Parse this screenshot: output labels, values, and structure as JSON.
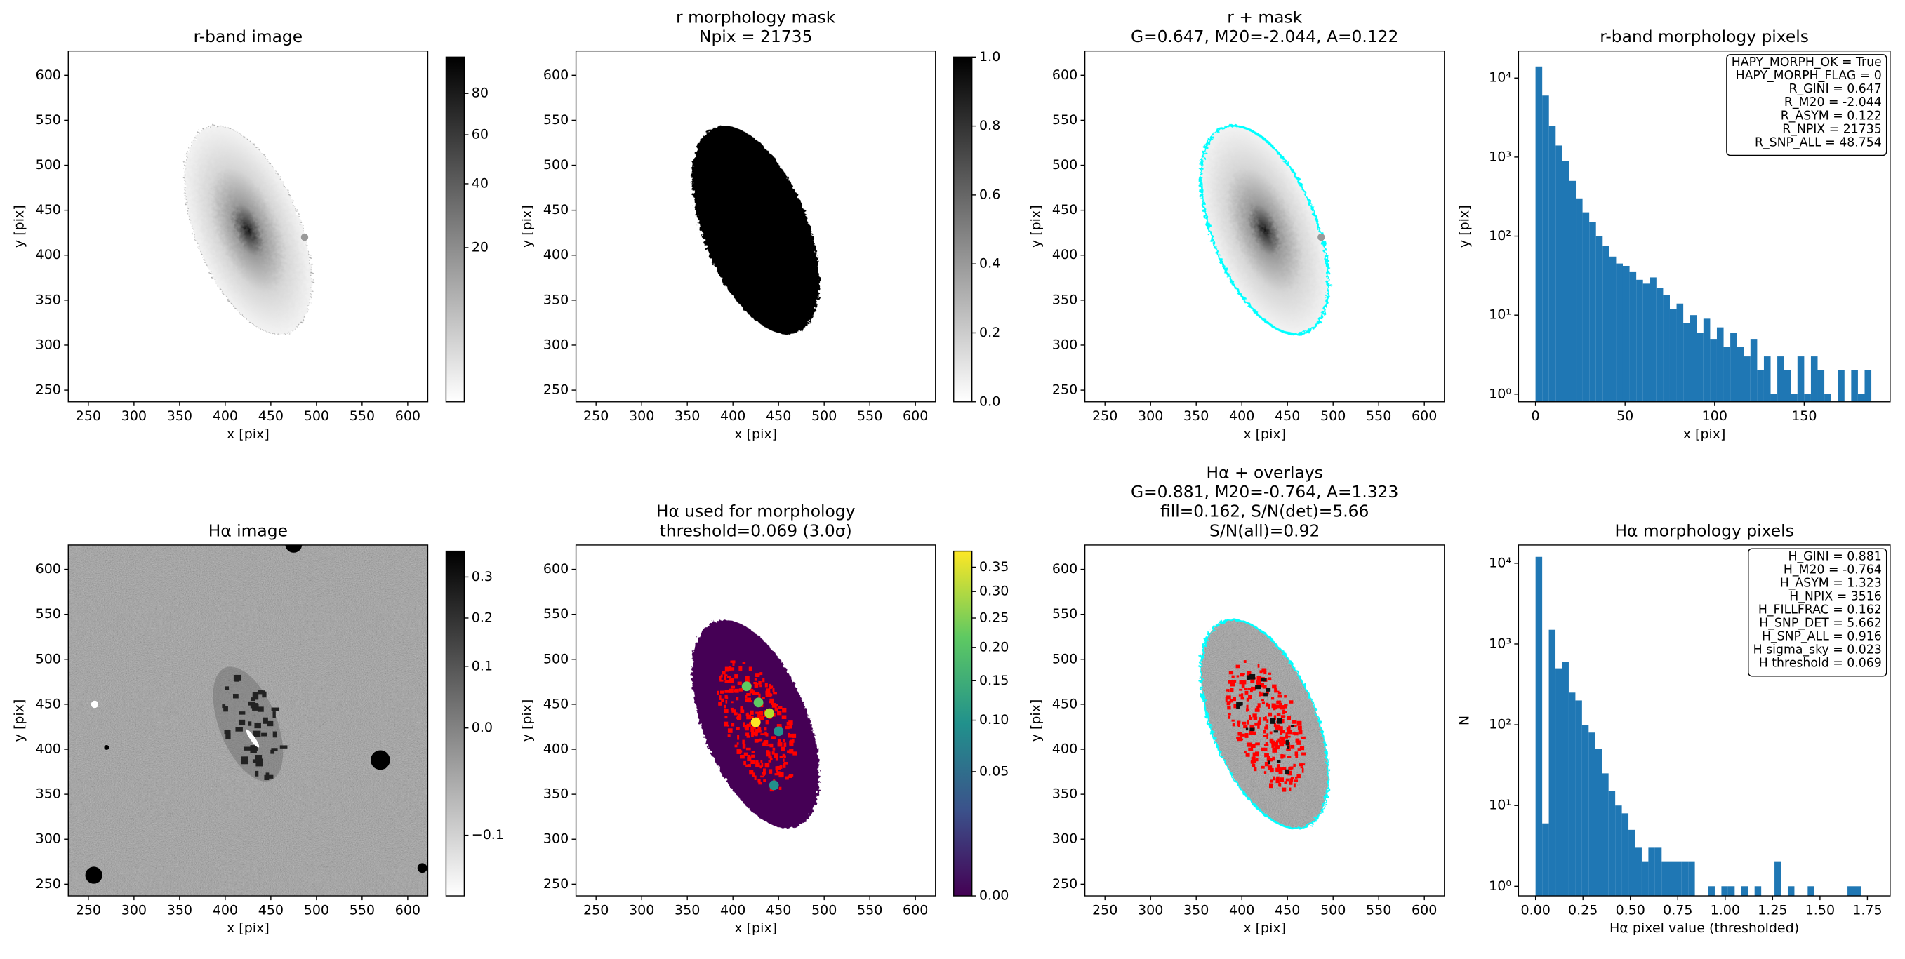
{
  "chart_data": [
    {
      "type": "image",
      "title": [
        "r-band image"
      ],
      "xlabel": "x [pix]",
      "ylabel": "y [pix]",
      "xlim": [
        228,
        622
      ],
      "ylim": [
        237,
        627
      ],
      "xticks": [
        250,
        300,
        350,
        400,
        450,
        500,
        550,
        600
      ],
      "yticks": [
        250,
        300,
        350,
        400,
        450,
        500,
        550,
        600
      ],
      "colorbar": {
        "lim": [
          0,
          100
        ],
        "ticks": [
          20,
          40,
          60,
          80
        ],
        "stretch": "sqrt",
        "cmap": "gray_r"
      }
    },
    {
      "type": "image",
      "title": [
        "r morphology mask",
        "Npix = 21735"
      ],
      "xlabel": "x [pix]",
      "ylabel": "y [pix]",
      "xlim": [
        228,
        622
      ],
      "ylim": [
        237,
        627
      ],
      "xticks": [
        250,
        300,
        350,
        400,
        450,
        500,
        550,
        600
      ],
      "yticks": [
        250,
        300,
        350,
        400,
        450,
        500,
        550,
        600
      ],
      "colorbar": {
        "lim": [
          0,
          1
        ],
        "ticks": [
          {
            "value": 0,
            "label": "0.0"
          },
          0.2,
          0.4,
          0.6,
          0.8,
          {
            "value": 1,
            "label": "1.0"
          }
        ],
        "stretch": "linear",
        "cmap": "gray_r"
      }
    },
    {
      "type": "image",
      "title": [
        "r + mask",
        "G=0.647, M20=-2.044, A=0.122"
      ],
      "xlabel": "x [pix]",
      "ylabel": "y [pix]",
      "xlim": [
        228,
        622
      ],
      "ylim": [
        237,
        627
      ],
      "xticks": [
        250,
        300,
        350,
        400,
        450,
        500,
        550,
        600
      ],
      "yticks": [
        250,
        300,
        350,
        400,
        450,
        500,
        550,
        600
      ]
    },
    {
      "type": "histogram",
      "title": [
        "r-band morphology pixels"
      ],
      "xlabel": "x [pix]",
      "ylabel": "y [pix]",
      "xlim": [
        -9.5,
        198
      ],
      "ylim": [
        0.8,
        22000
      ],
      "ylog": true,
      "xticks": [
        0,
        50,
        100,
        150
      ],
      "yticks": [
        {
          "value": 1,
          "label": "10⁰"
        },
        {
          "value": 10,
          "label": "10¹"
        },
        {
          "value": 100,
          "label": "10²"
        },
        {
          "value": 1000,
          "label": "10³"
        },
        {
          "value": 10000,
          "label": "10⁴"
        }
      ],
      "color": "#1f77b4",
      "bins": [
        0,
        3.75,
        7.5,
        11.25,
        15,
        18.75,
        22.5,
        26.25,
        30,
        33.75,
        37.5,
        41.25,
        45,
        48.75,
        52.5,
        56.25,
        60,
        63.75,
        67.5,
        71.25,
        75,
        78.75,
        82.5,
        86.25,
        90,
        93.75,
        97.5,
        101.25,
        105,
        108.75,
        112.5,
        116.25,
        120,
        123.75,
        127.5,
        131.25,
        135,
        138.75,
        142.5,
        146.25,
        150,
        153.75,
        157.5,
        161.25,
        165,
        168.75,
        172.5,
        176.25,
        180,
        183.75,
        187.5
      ],
      "counts": [
        14000,
        6000,
        2500,
        1400,
        900,
        500,
        300,
        200,
        150,
        100,
        75,
        55,
        45,
        42,
        35,
        28,
        25,
        30,
        22,
        18,
        12,
        14,
        8,
        10,
        6,
        9,
        5,
        7,
        4,
        6,
        4,
        3,
        5,
        2,
        3,
        1,
        3,
        2,
        1,
        3,
        1,
        3,
        2,
        1,
        0,
        2,
        0,
        2,
        1,
        2
      ],
      "annotation": [
        "HAPY_MORPH_OK = True",
        "HAPY_MORPH_FLAG = 0",
        "R_GINI = 0.647",
        "R_M20 = -2.044",
        "R_ASYM = 0.122",
        "R_NPIX = 21735",
        "R_SNP_ALL = 48.754"
      ]
    },
    {
      "type": "image",
      "title": [
        "Hα image"
      ],
      "xlabel": "x [pix]",
      "ylabel": "y [pix]",
      "xlim": [
        228,
        622
      ],
      "ylim": [
        237,
        627
      ],
      "xticks": [
        250,
        300,
        350,
        400,
        450,
        500,
        550,
        600
      ],
      "yticks": [
        250,
        300,
        350,
        400,
        450,
        500,
        550,
        600
      ],
      "colorbar": {
        "lim": [
          -0.115,
          0.37
        ],
        "ticks": [
          {
            "value": -0.1,
            "label": "−0.1"
          },
          {
            "value": 0,
            "label": "0.0"
          },
          0.1,
          0.2,
          0.3
        ],
        "stretch": "sqrt",
        "cmap": "gray_r"
      }
    },
    {
      "type": "image",
      "title": [
        "Hα used for morphology",
        "threshold=0.069 (3.0σ)"
      ],
      "xlabel": "x [pix]",
      "ylabel": "y [pix]",
      "xlim": [
        228,
        622
      ],
      "ylim": [
        237,
        627
      ],
      "xticks": [
        250,
        300,
        350,
        400,
        450,
        500,
        550,
        600
      ],
      "yticks": [
        250,
        300,
        350,
        400,
        450,
        500,
        550,
        600
      ],
      "colorbar": {
        "lim": [
          0,
          0.385
        ],
        "ticks": [
          {
            "value": 0,
            "label": "0.00"
          },
          0.05,
          {
            "value": 0.1,
            "label": "0.10"
          },
          0.15,
          {
            "value": 0.2,
            "label": "0.20"
          },
          0.25,
          {
            "value": 0.3,
            "label": "0.30"
          },
          0.35
        ],
        "stretch": "sqrt",
        "cmap": "viridis"
      }
    },
    {
      "type": "image",
      "title": [
        "Hα + overlays",
        "G=0.881, M20=-0.764, A=1.323",
        "fill=0.162, S/N(det)=5.66",
        "S/N(all)=0.92"
      ],
      "xlabel": "x [pix]",
      "ylabel": "y [pix]",
      "xlim": [
        228,
        622
      ],
      "ylim": [
        237,
        627
      ],
      "xticks": [
        250,
        300,
        350,
        400,
        450,
        500,
        550,
        600
      ],
      "yticks": [
        250,
        300,
        350,
        400,
        450,
        500,
        550,
        600
      ]
    },
    {
      "type": "histogram",
      "title": [
        "Hα morphology pixels"
      ],
      "xlabel": "Hα pixel value (thresholded)",
      "ylabel": "N",
      "xlim": [
        -0.09,
        1.87
      ],
      "ylim": [
        0.76,
        16800
      ],
      "ylog": true,
      "xticks": [
        {
          "value": 0,
          "label": "0.00"
        },
        0.25,
        {
          "value": 0.5,
          "label": "0.50"
        },
        0.75,
        {
          "value": 1,
          "label": "1.00"
        },
        1.25,
        {
          "value": 1.5,
          "label": "1.50"
        },
        1.75
      ],
      "yticks": [
        {
          "value": 1,
          "label": "10⁰"
        },
        {
          "value": 10,
          "label": "10¹"
        },
        {
          "value": 100,
          "label": "10²"
        },
        {
          "value": 1000,
          "label": "10³"
        },
        {
          "value": 10000,
          "label": "10⁴"
        }
      ],
      "color": "#1f77b4",
      "bins": [
        0,
        0.035,
        0.07,
        0.105,
        0.14,
        0.175,
        0.21,
        0.245,
        0.28,
        0.315,
        0.35,
        0.385,
        0.42,
        0.455,
        0.49,
        0.525,
        0.56,
        0.595,
        0.63,
        0.665,
        0.7,
        0.735,
        0.77,
        0.805,
        0.84,
        0.875,
        0.91,
        0.945,
        0.98,
        1.015,
        1.05,
        1.085,
        1.12,
        1.155,
        1.19,
        1.225,
        1.26,
        1.295,
        1.33,
        1.365,
        1.4,
        1.435,
        1.47,
        1.505,
        1.54,
        1.575,
        1.61,
        1.645,
        1.68,
        1.715,
        1.75
      ],
      "counts": [
        12000,
        6,
        1500,
        500,
        600,
        250,
        200,
        100,
        80,
        50,
        25,
        15,
        10,
        8,
        5,
        3,
        2,
        3,
        3,
        2,
        2,
        2,
        2,
        2,
        0,
        0,
        1,
        0,
        1,
        1,
        0,
        1,
        0,
        1,
        0,
        0,
        2,
        0,
        1,
        0,
        0,
        1,
        0,
        0,
        0,
        0,
        0,
        1,
        1,
        0
      ],
      "annotation": [
        "H_GINI = 0.881",
        "H_M20 = -0.764",
        "H_ASYM = 1.323",
        "H_NPIX = 3516",
        "H_FILLFRAC = 0.162",
        "H_SNP_DET = 5.662",
        "H_SNP_ALL = 0.916",
        "H sigma_sky = 0.023",
        "H threshold = 0.069"
      ]
    }
  ]
}
